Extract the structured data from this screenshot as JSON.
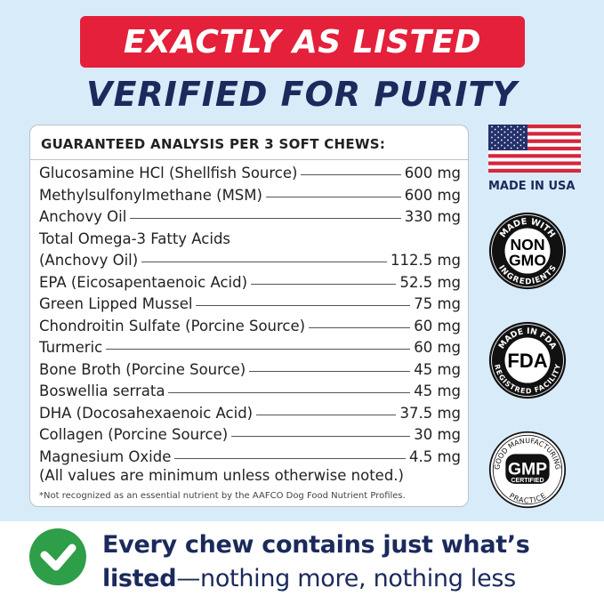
{
  "banner": "EXACTLY AS LISTED",
  "subtitle": "VERIFIED FOR PURITY",
  "card": {
    "title": "GUARANTEED ANALYSIS PER 3 SOFT CHEWS:",
    "rows": [
      {
        "name": "Glucosamine HCl (Shellfish Source)",
        "value": "600 mg"
      },
      {
        "name": "Methylsulfonylmethane (MSM)",
        "value": "600 mg"
      },
      {
        "name": "Anchovy Oil",
        "value": "330 mg"
      },
      {
        "name": "Total Omega-3 Fatty Acids",
        "name2": "(Anchovy Oil)",
        "value": "112.5 mg"
      },
      {
        "name": "EPA (Eicosapentaenoic Acid)",
        "value": "52.5 mg"
      },
      {
        "name": "Green Lipped Mussel",
        "value": "75 mg"
      },
      {
        "name": "Chondroitin Sulfate (Porcine Source)",
        "value": "60 mg"
      },
      {
        "name": "Turmeric",
        "value": "60 mg"
      },
      {
        "name": "Bone Broth (Porcine Source)",
        "value": "45 mg"
      },
      {
        "name": "Boswellia serrata",
        "value": "45 mg"
      },
      {
        "name": "DHA (Docosahexaenoic Acid)",
        "value": "37.5 mg"
      },
      {
        "name": "Collagen (Porcine Source)",
        "value": "30 mg"
      },
      {
        "name": "Magnesium Oxide",
        "value": "4.5 mg"
      }
    ],
    "note": "(All values are minimum unless otherwise noted.)",
    "footnote": "*Not recognized as an essential nutrient by the AAFCO Dog Food Nutrient Profiles."
  },
  "badges": {
    "made_in_usa": "MADE IN USA",
    "nongmo": {
      "top": "MADE WITH",
      "center1": "NON",
      "center2": "GMO",
      "bottom": "INGREDIENTS"
    },
    "fda": {
      "top": "MADE IN FDA",
      "center": "FDA",
      "bottom": "REGISTRED FACILITY"
    },
    "gmp": {
      "top": "GOOD MANUFACTURING",
      "center": "GMP",
      "center2": "CERTIFIED",
      "bottom": "PRACTICE"
    }
  },
  "tagline": {
    "line1": "Every chew contains just what’s",
    "bold": "listed",
    "rest": "—nothing more, nothing less"
  },
  "colors": {
    "red": "#e4203a",
    "navy": "#1b2a5c",
    "green": "#2e9e48",
    "background": "#d8ebf9"
  }
}
